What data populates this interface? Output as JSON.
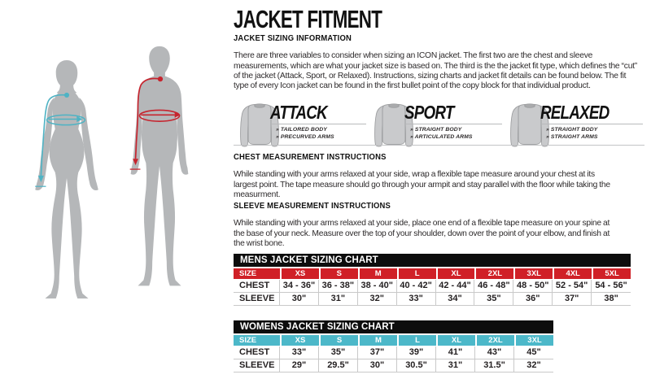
{
  "page": {
    "title": "JACKET FITMENT"
  },
  "sizing_info": {
    "heading": "JACKET SIZING INFORMATION",
    "body": "There are three variables to consider when sizing an ICON jacket. The first two are the chest and sleeve measurements, which are what your jacket size is based on. The third is the the jacket fit type, which defines the “cut” of the jacket (Attack, Sport, or Relaxed). Instructions, sizing charts and jacket fit details can be found below. The fit type of every Icon jacket can be found in the first bullet point of the copy block for that individual product."
  },
  "fit_types": [
    {
      "name": "ATTACK",
      "bullets": [
        "» TAILORED BODY",
        "» PRECURVED ARMS"
      ]
    },
    {
      "name": "SPORT",
      "bullets": [
        "» STRAIGHT BODY",
        "» ARTICULATED ARMS"
      ]
    },
    {
      "name": "RELAXED",
      "bullets": [
        "» STRAIGHT BODY",
        "» STRAIGHT ARMS"
      ]
    }
  ],
  "chest_instructions": {
    "heading": "CHEST MEASUREMENT INSTRUCTIONS",
    "body": "While standing with your arms relaxed at your side, wrap a flexible tape measure around your chest at its largest point. The tape measure should go through your armpit and stay parallel with the floor while taking the measurment."
  },
  "sleeve_instructions": {
    "heading": "SLEEVE MEASUREMENT INSTRUCTIONS",
    "body": "While standing with your arms relaxed at your side, place one end of a flexible tape measure on your spine at the base of your neck. Measure over the top of your shoulder, down over the point of your elbow, and finish at the wrist bone."
  },
  "mens_chart": {
    "title": "MENS JACKET SIZING CHART",
    "header_color": "#d02027",
    "columns": [
      "SIZE",
      "XS",
      "S",
      "M",
      "L",
      "XL",
      "2XL",
      "3XL",
      "4XL",
      "5XL"
    ],
    "rows": [
      {
        "label": "CHEST",
        "values": [
          "34 - 36\"",
          "36 - 38\"",
          "38 - 40\"",
          "40 - 42\"",
          "42 - 44\"",
          "46 - 48\"",
          "48 - 50\"",
          "52 - 54\"",
          "54 - 56\""
        ]
      },
      {
        "label": "SLEEVE",
        "values": [
          "30\"",
          "31\"",
          "32\"",
          "33\"",
          "34\"",
          "35\"",
          "36\"",
          "37\"",
          "38\""
        ]
      }
    ]
  },
  "womens_chart": {
    "title": "WOMENS JACKET SIZING CHART",
    "header_color": "#4cb8c9",
    "columns": [
      "SIZE",
      "XS",
      "S",
      "M",
      "L",
      "XL",
      "2XL",
      "3XL"
    ],
    "rows": [
      {
        "label": "CHEST",
        "values": [
          "33\"",
          "35\"",
          "37\"",
          "39\"",
          "41\"",
          "43\"",
          "45\""
        ]
      },
      {
        "label": "SLEEVE",
        "values": [
          "29\"",
          "29.5\"",
          "30\"",
          "30.5\"",
          "31\"",
          "31.5\"",
          "32\""
        ]
      }
    ]
  },
  "colors": {
    "mens_accent": "#d02027",
    "womens_accent": "#4cb8c9",
    "female_measure_line": "#4fb3c4",
    "male_measure_line": "#c6242e",
    "silhouette_gray": "#b5b7b9",
    "chart_title_bg": "#0d0d0d"
  }
}
